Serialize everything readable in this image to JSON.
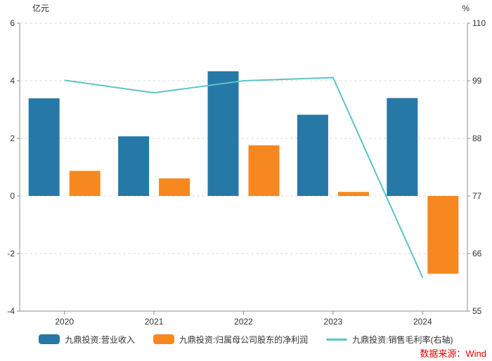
{
  "chart_data": {
    "type": "bar",
    "subtype": "combo-bar-line",
    "categories": [
      "2020",
      "2021",
      "2022",
      "2023",
      "2024"
    ],
    "series": [
      {
        "name": "九鼎投资:营业收入",
        "type": "bar",
        "axis": "left",
        "color": "#2678A6",
        "values": [
          3.39,
          2.07,
          4.33,
          2.82,
          3.4
        ]
      },
      {
        "name": "九鼎投资:归属母公司股东的净利润",
        "type": "bar",
        "axis": "left",
        "color": "#F6881F",
        "values": [
          0.87,
          0.61,
          1.76,
          0.14,
          -2.7
        ]
      },
      {
        "name": "九鼎投资:销售毛利率(右轴)",
        "type": "line",
        "axis": "right",
        "color": "#5BC4C6",
        "values": [
          99.1,
          96.7,
          99.0,
          99.6,
          61.4
        ]
      }
    ],
    "left_axis": {
      "title": "亿元",
      "min": -4,
      "max": 6,
      "ticks": [
        6,
        4,
        2,
        0,
        -2,
        -4
      ]
    },
    "right_axis": {
      "title": "%",
      "min": 55,
      "max": 110,
      "ticks": [
        110,
        99,
        88,
        77,
        66,
        55
      ]
    },
    "grid": "horizontal-dashed",
    "legend_position": "bottom"
  },
  "source": {
    "label": "数据来源：Wind",
    "color": "#E60000"
  },
  "colors": {
    "grid": "#DCDCDC",
    "axis": "#8C8C8C",
    "tick_text": "#333333",
    "background": "#FFFFFF"
  }
}
